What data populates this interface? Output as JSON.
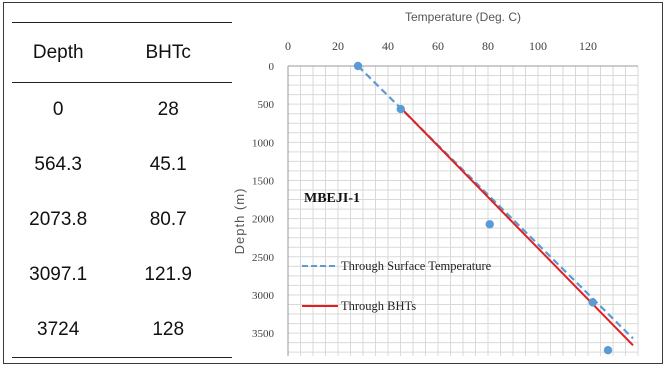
{
  "table": {
    "headers": [
      "Depth",
      "BHTc"
    ],
    "rows": [
      [
        "0",
        "28"
      ],
      [
        "564.3",
        "45.1"
      ],
      [
        "2073.8",
        "80.7"
      ],
      [
        "3097.1",
        "121.9"
      ],
      [
        "3724",
        "128"
      ]
    ]
  },
  "chart_data": {
    "type": "scatter",
    "title": "",
    "xlabel": "Temperature (Deg. C)",
    "ylabel": "Depth (m)",
    "xlim": [
      0,
      140
    ],
    "ylim": [
      0,
      3800
    ],
    "y_inverted": true,
    "x_axis_position": "top",
    "x_ticks": [
      "0",
      "20",
      "40",
      "60",
      "80",
      "100",
      "120"
    ],
    "y_ticks": [
      "0",
      "500",
      "1000",
      "1500",
      "2000",
      "2500",
      "3000",
      "3500"
    ],
    "grid": true,
    "annotation": "MBEJI-1",
    "points": {
      "x": [
        28,
        45.1,
        80.7,
        121.9,
        128
      ],
      "y": [
        0,
        564.3,
        2073.8,
        3097.1,
        3724
      ],
      "color": "#5b9bd5"
    },
    "series": [
      {
        "name": "Through Surface Temperature",
        "style": "dashed",
        "color": "#5b9bd5",
        "x": [
          28,
          138
        ],
        "y": [
          0,
          3570
        ]
      },
      {
        "name": "Through BHTs",
        "style": "solid",
        "color": "#e02020",
        "x": [
          45,
          138
        ],
        "y": [
          545,
          3660
        ]
      }
    ],
    "legend_position": "lower-left"
  }
}
